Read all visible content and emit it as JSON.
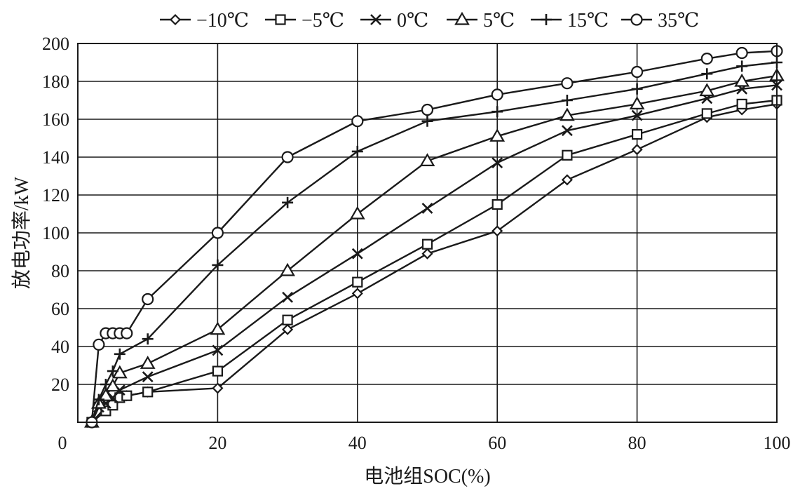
{
  "chart_data": {
    "type": "line",
    "xlabel": "电池组SOC(%)",
    "ylabel": "放电功率/kW",
    "xlim": [
      0,
      100
    ],
    "ylim": [
      0,
      200
    ],
    "x_ticks": [
      "0",
      "20",
      "40",
      "60",
      "80",
      "100"
    ],
    "y_ticks": [
      "20",
      "40",
      "60",
      "80",
      "100",
      "120",
      "140",
      "160",
      "180",
      "200"
    ],
    "grid": true,
    "legend_position": "top",
    "series": [
      {
        "name": "−10℃",
        "marker": "diamond",
        "points": [
          [
            2,
            0
          ],
          [
            4,
            8
          ],
          [
            5,
            10
          ],
          [
            6,
            14
          ],
          [
            7,
            14
          ],
          [
            10,
            16
          ],
          [
            20,
            18
          ],
          [
            30,
            49
          ],
          [
            40,
            68
          ],
          [
            50,
            89
          ],
          [
            60,
            101
          ],
          [
            70,
            128
          ],
          [
            80,
            144
          ],
          [
            90,
            161
          ],
          [
            95,
            165
          ],
          [
            100,
            168
          ]
        ]
      },
      {
        "name": "−5℃",
        "marker": "square",
        "points": [
          [
            2,
            0
          ],
          [
            4,
            6
          ],
          [
            5,
            9
          ],
          [
            6,
            13
          ],
          [
            7,
            14
          ],
          [
            10,
            16
          ],
          [
            20,
            27
          ],
          [
            30,
            54
          ],
          [
            40,
            74
          ],
          [
            50,
            94
          ],
          [
            60,
            115
          ],
          [
            70,
            141
          ],
          [
            80,
            152
          ],
          [
            90,
            163
          ],
          [
            95,
            168
          ],
          [
            100,
            170
          ]
        ]
      },
      {
        "name": "0℃",
        "marker": "x",
        "points": [
          [
            2,
            0
          ],
          [
            3,
            8
          ],
          [
            4,
            10
          ],
          [
            5,
            13
          ],
          [
            6,
            17
          ],
          [
            10,
            24
          ],
          [
            20,
            38
          ],
          [
            30,
            66
          ],
          [
            40,
            89
          ],
          [
            50,
            113
          ],
          [
            60,
            137
          ],
          [
            70,
            154
          ],
          [
            80,
            162
          ],
          [
            90,
            171
          ],
          [
            95,
            176
          ],
          [
            100,
            178
          ]
        ]
      },
      {
        "name": "5℃",
        "marker": "triangle",
        "points": [
          [
            2,
            0
          ],
          [
            3,
            10
          ],
          [
            4,
            14
          ],
          [
            5,
            19
          ],
          [
            6,
            26
          ],
          [
            10,
            31
          ],
          [
            20,
            49
          ],
          [
            30,
            80
          ],
          [
            40,
            110
          ],
          [
            50,
            138
          ],
          [
            60,
            151
          ],
          [
            70,
            162
          ],
          [
            80,
            168
          ],
          [
            90,
            175
          ],
          [
            95,
            180
          ],
          [
            100,
            183
          ]
        ]
      },
      {
        "name": "15℃",
        "marker": "plus",
        "points": [
          [
            2,
            0
          ],
          [
            3,
            12
          ],
          [
            4,
            20
          ],
          [
            5,
            27
          ],
          [
            6,
            36
          ],
          [
            10,
            44
          ],
          [
            20,
            83
          ],
          [
            30,
            116
          ],
          [
            40,
            143
          ],
          [
            50,
            159
          ],
          [
            60,
            164
          ],
          [
            70,
            170
          ],
          [
            80,
            176
          ],
          [
            90,
            184
          ],
          [
            95,
            188
          ],
          [
            100,
            190
          ]
        ]
      },
      {
        "name": "35℃",
        "marker": "circle",
        "points": [
          [
            2,
            0
          ],
          [
            3,
            41
          ],
          [
            4,
            47
          ],
          [
            5,
            47
          ],
          [
            6,
            47
          ],
          [
            7,
            47
          ],
          [
            10,
            65
          ],
          [
            20,
            100
          ],
          [
            30,
            140
          ],
          [
            40,
            159
          ],
          [
            50,
            165
          ],
          [
            60,
            173
          ],
          [
            70,
            179
          ],
          [
            80,
            185
          ],
          [
            90,
            192
          ],
          [
            95,
            195
          ],
          [
            100,
            196
          ]
        ]
      }
    ]
  }
}
